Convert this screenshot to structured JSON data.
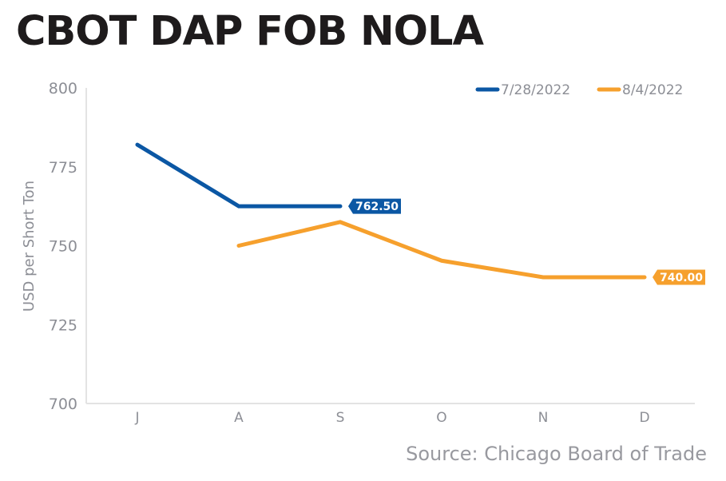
{
  "chart_data": {
    "type": "line",
    "title": "CBOT DAP FOB NOLA",
    "xlabel": "",
    "ylabel": "USD per Short Ton",
    "categories": [
      "J",
      "A",
      "S",
      "O",
      "N",
      "D"
    ],
    "ylim": [
      700,
      800
    ],
    "yticks": [
      700,
      725,
      750,
      775,
      800
    ],
    "grid": false,
    "legend_position": "top-right",
    "series": [
      {
        "name": "7/28/2022",
        "color": "#0b57a4",
        "values": [
          782,
          762.5,
          762.5,
          null,
          null,
          null
        ],
        "end_label": "762.50"
      },
      {
        "name": "8/4/2022",
        "color": "#f6a02d",
        "values": [
          null,
          750,
          757.5,
          745.25,
          740,
          740
        ],
        "end_label": "740.00"
      }
    ],
    "source": "Source: Chicago Board of Trade"
  }
}
